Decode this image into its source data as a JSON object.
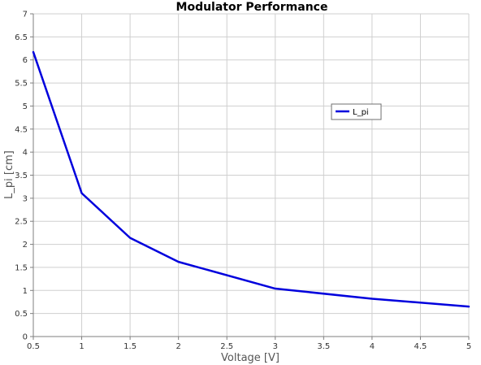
{
  "colors": {
    "series": "#0000dd",
    "grid": "#cfcfcf",
    "axis": "#7f7f7f"
  },
  "chart_data": {
    "type": "line",
    "title": "Modulator Performance",
    "xlabel": "Voltage [V]",
    "ylabel": "L_pi [cm]",
    "xlim": [
      0.5,
      5
    ],
    "ylim": [
      0,
      7
    ],
    "x_ticks": [
      "0.5",
      "1",
      "1.5",
      "2",
      "2.5",
      "3",
      "3.5",
      "4",
      "4.5",
      "5"
    ],
    "y_ticks": [
      "0",
      "0.5",
      "1",
      "1.5",
      "2",
      "2.5",
      "3",
      "3.5",
      "4",
      "4.5",
      "5",
      "5.5",
      "6",
      "6.5",
      "7"
    ],
    "grid": true,
    "legend_position": "right",
    "series": [
      {
        "name": "L_pi",
        "x": [
          0.5,
          1.0,
          1.5,
          2.0,
          3.0,
          4.0,
          5.0
        ],
        "y": [
          6.17,
          3.11,
          2.14,
          1.62,
          1.04,
          0.82,
          0.65
        ]
      }
    ]
  }
}
